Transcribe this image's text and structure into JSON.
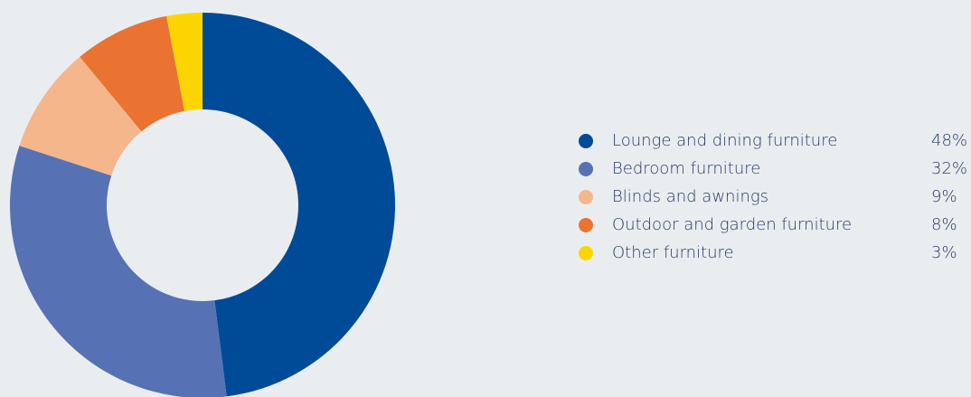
{
  "chart_data": {
    "type": "pie",
    "categories": [
      "Lounge and dining furniture",
      "Bedroom furniture",
      "Blinds and awnings",
      "Outdoor and garden furniture",
      "Other furniture"
    ],
    "values": [
      48,
      32,
      9,
      8,
      3
    ],
    "value_labels": [
      "48%",
      "32%",
      "9%",
      "8%",
      "3%"
    ],
    "colors": [
      "#004b98",
      "#5672b4",
      "#f5b68c",
      "#ea7331",
      "#fcd500"
    ],
    "donut": true,
    "legend": "right"
  }
}
